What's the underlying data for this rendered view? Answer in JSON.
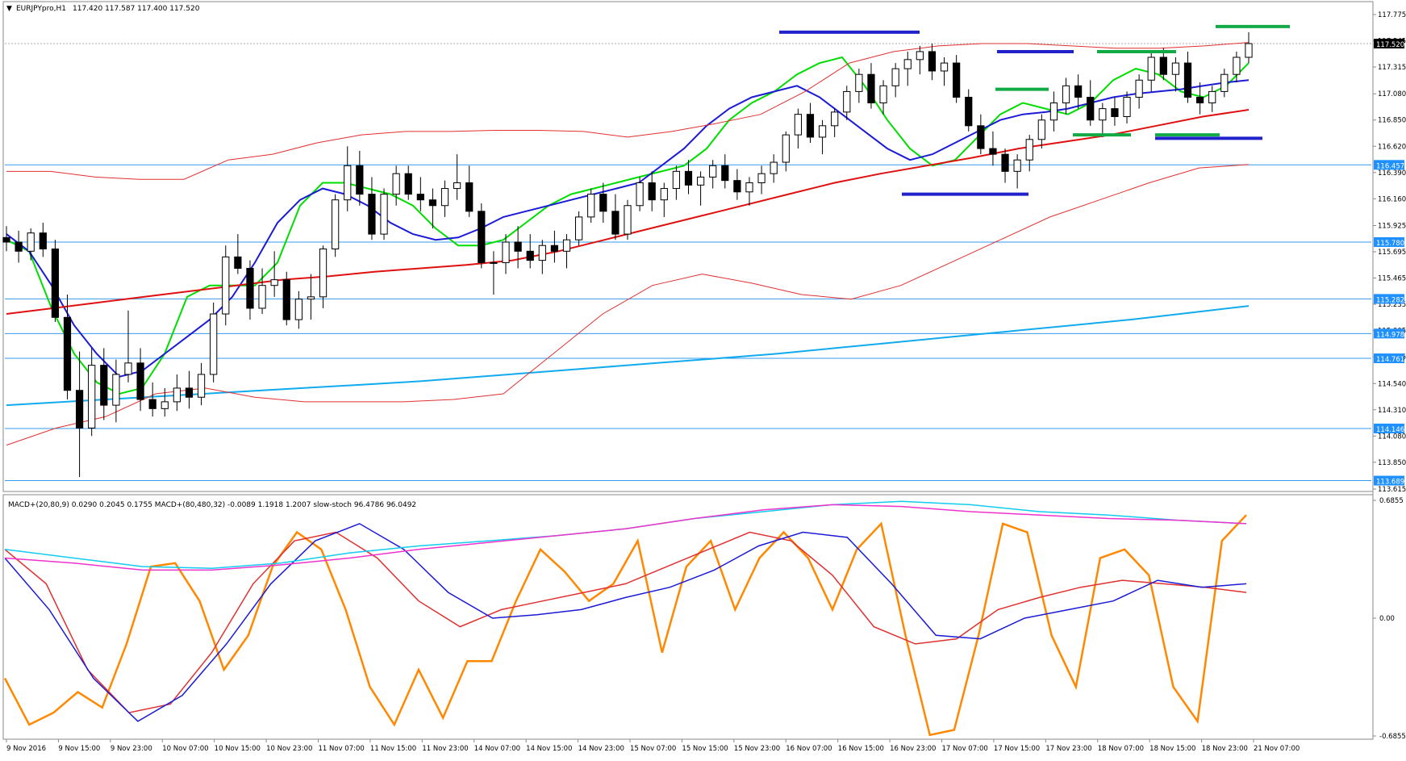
{
  "chart_data": [
    {
      "type": "candlestick",
      "symbol_label": "EURJPYpro,H1",
      "ohlc_label": "117.420 117.587 117.400 117.520",
      "y_ticks": [
        "117.775",
        "117.545",
        "117.315",
        "117.080",
        "116.850",
        "116.620",
        "116.390",
        "116.160",
        "115.925",
        "115.695",
        "115.465",
        "115.235",
        "115.005",
        "114.775",
        "114.540",
        "114.310",
        "114.080",
        "113.850",
        "113.615"
      ],
      "ylim": [
        113.615,
        117.775
      ],
      "current_price": "117.520",
      "horizontal_levels": [
        "116.457",
        "115.780",
        "115.282",
        "114.978",
        "114.761",
        "114.146",
        "113.689"
      ],
      "candles": [
        [
          115.82,
          115.92,
          115.7,
          115.78
        ],
        [
          115.78,
          115.88,
          115.6,
          115.7
        ],
        [
          115.7,
          115.9,
          115.62,
          115.86
        ],
        [
          115.86,
          115.95,
          115.65,
          115.72
        ],
        [
          115.72,
          115.8,
          115.08,
          115.12
        ],
        [
          115.12,
          115.32,
          114.4,
          114.48
        ],
        [
          114.48,
          114.82,
          113.72,
          114.15
        ],
        [
          114.15,
          114.85,
          114.08,
          114.7
        ],
        [
          114.7,
          114.85,
          114.22,
          114.35
        ],
        [
          114.35,
          114.75,
          114.2,
          114.62
        ],
        [
          114.62,
          115.18,
          114.55,
          114.72
        ],
        [
          114.72,
          114.85,
          114.3,
          114.4
        ],
        [
          114.4,
          114.55,
          114.25,
          114.32
        ],
        [
          114.32,
          114.5,
          114.25,
          114.38
        ],
        [
          114.38,
          114.62,
          114.3,
          114.5
        ],
        [
          114.5,
          114.65,
          114.32,
          114.42
        ],
        [
          114.42,
          114.72,
          114.35,
          114.62
        ],
        [
          114.62,
          115.25,
          114.55,
          115.15
        ],
        [
          115.15,
          115.75,
          115.05,
          115.65
        ],
        [
          115.65,
          115.85,
          115.5,
          115.55
        ],
        [
          115.55,
          115.62,
          115.1,
          115.2
        ],
        [
          115.2,
          115.55,
          115.15,
          115.4
        ],
        [
          115.4,
          115.7,
          115.3,
          115.45
        ],
        [
          115.45,
          115.52,
          115.05,
          115.1
        ],
        [
          115.1,
          115.35,
          115.02,
          115.28
        ],
        [
          115.28,
          115.5,
          115.1,
          115.3
        ],
        [
          115.3,
          115.75,
          115.2,
          115.72
        ],
        [
          115.72,
          116.2,
          115.65,
          116.15
        ],
        [
          116.15,
          116.62,
          116.05,
          116.45
        ],
        [
          116.45,
          116.58,
          116.1,
          116.2
        ],
        [
          116.2,
          116.35,
          115.8,
          115.85
        ],
        [
          115.85,
          116.25,
          115.8,
          116.2
        ],
        [
          116.2,
          116.45,
          116.1,
          116.38
        ],
        [
          116.38,
          116.45,
          116.15,
          116.2
        ],
        [
          116.2,
          116.35,
          116.05,
          116.15
        ],
        [
          116.15,
          116.25,
          115.9,
          116.1
        ],
        [
          116.1,
          116.32,
          116.0,
          116.25
        ],
        [
          116.25,
          116.55,
          116.15,
          116.3
        ],
        [
          116.3,
          116.45,
          116.0,
          116.05
        ],
        [
          116.05,
          116.12,
          115.55,
          115.6
        ],
        [
          115.6,
          115.7,
          115.32,
          115.6
        ],
        [
          115.6,
          115.85,
          115.5,
          115.78
        ],
        [
          115.78,
          115.92,
          115.55,
          115.7
        ],
        [
          115.7,
          115.85,
          115.55,
          115.62
        ],
        [
          115.62,
          115.8,
          115.5,
          115.75
        ],
        [
          115.75,
          115.88,
          115.6,
          115.7
        ],
        [
          115.7,
          115.85,
          115.55,
          115.8
        ],
        [
          115.8,
          116.05,
          115.75,
          116.0
        ],
        [
          116.0,
          116.25,
          115.95,
          116.2
        ],
        [
          116.2,
          116.3,
          115.95,
          116.05
        ],
        [
          116.05,
          116.2,
          115.8,
          115.85
        ],
        [
          115.85,
          116.15,
          115.8,
          116.1
        ],
        [
          116.1,
          116.35,
          116.05,
          116.3
        ],
        [
          116.3,
          116.4,
          116.05,
          116.15
        ],
        [
          116.15,
          116.3,
          116.0,
          116.25
        ],
        [
          116.25,
          116.45,
          116.15,
          116.4
        ],
        [
          116.4,
          116.5,
          116.2,
          116.28
        ],
        [
          116.28,
          116.4,
          116.1,
          116.35
        ],
        [
          116.35,
          116.5,
          116.25,
          116.45
        ],
        [
          116.45,
          116.55,
          116.25,
          116.32
        ],
        [
          116.32,
          116.42,
          116.15,
          116.22
        ],
        [
          116.22,
          116.35,
          116.1,
          116.3
        ],
        [
          116.3,
          116.45,
          116.2,
          116.38
        ],
        [
          116.38,
          116.55,
          116.3,
          116.48
        ],
        [
          116.48,
          116.75,
          116.4,
          116.72
        ],
        [
          116.72,
          116.95,
          116.6,
          116.9
        ],
        [
          116.9,
          117.0,
          116.65,
          116.7
        ],
        [
          116.7,
          116.85,
          116.55,
          116.8
        ],
        [
          116.8,
          116.95,
          116.7,
          116.92
        ],
        [
          116.92,
          117.15,
          116.85,
          117.1
        ],
        [
          117.1,
          117.3,
          117.0,
          117.25
        ],
        [
          117.25,
          117.35,
          116.95,
          117.0
        ],
        [
          117.0,
          117.2,
          116.9,
          117.15
        ],
        [
          117.15,
          117.35,
          117.05,
          117.3
        ],
        [
          117.3,
          117.45,
          117.15,
          117.38
        ],
        [
          117.38,
          117.5,
          117.25,
          117.45
        ],
        [
          117.45,
          117.52,
          117.2,
          117.28
        ],
        [
          117.28,
          117.4,
          117.15,
          117.35
        ],
        [
          117.35,
          117.42,
          117.0,
          117.05
        ],
        [
          117.05,
          117.12,
          116.75,
          116.8
        ],
        [
          116.8,
          116.9,
          116.55,
          116.6
        ],
        [
          116.6,
          116.75,
          116.45,
          116.55
        ],
        [
          116.55,
          116.6,
          116.3,
          116.4
        ],
        [
          116.4,
          116.55,
          116.25,
          116.5
        ],
        [
          116.5,
          116.72,
          116.4,
          116.68
        ],
        [
          116.68,
          116.9,
          116.6,
          116.85
        ],
        [
          116.85,
          117.1,
          116.75,
          117.0
        ],
        [
          117.0,
          117.22,
          116.9,
          117.15
        ],
        [
          117.15,
          117.25,
          116.95,
          117.05
        ],
        [
          117.05,
          117.2,
          116.8,
          116.85
        ],
        [
          116.85,
          117.0,
          116.7,
          116.95
        ],
        [
          116.95,
          117.05,
          116.8,
          116.88
        ],
        [
          116.88,
          117.1,
          116.82,
          117.05
        ],
        [
          117.05,
          117.25,
          116.95,
          117.2
        ],
        [
          117.2,
          117.45,
          117.1,
          117.4
        ],
        [
          117.4,
          117.48,
          117.2,
          117.25
        ],
        [
          117.25,
          117.4,
          117.1,
          117.35
        ],
        [
          117.35,
          117.45,
          117.0,
          117.05
        ],
        [
          117.05,
          117.18,
          116.9,
          117.0
        ],
        [
          117.0,
          117.15,
          116.92,
          117.1
        ],
        [
          117.1,
          117.3,
          117.05,
          117.25
        ],
        [
          117.25,
          117.45,
          117.18,
          117.4
        ],
        [
          117.4,
          117.62,
          117.35,
          117.52
        ]
      ],
      "overlay_lines": [
        {
          "name": "ema-fast-green",
          "color": "#00dd00",
          "values": [
            115.8,
            115.7,
            115.2,
            114.8,
            114.55,
            114.45,
            114.5,
            114.8,
            115.3,
            115.4,
            115.4,
            115.4,
            115.6,
            116.1,
            116.3,
            116.3,
            116.25,
            116.2,
            116.1,
            115.9,
            115.75,
            115.75,
            115.8,
            115.95,
            116.1,
            116.2,
            116.25,
            116.3,
            116.35,
            116.4,
            116.45,
            116.6,
            116.85,
            117.0,
            117.1,
            117.25,
            117.35,
            117.4,
            117.15,
            116.85,
            116.6,
            116.45,
            116.5,
            116.7,
            116.9,
            117.0,
            116.95,
            116.9,
            117.0,
            117.2,
            117.3,
            117.25,
            117.1,
            117.05,
            117.15,
            117.35
          ]
        },
        {
          "name": "ema-mid-blue",
          "color": "#1b1bd6",
          "values": [
            115.85,
            115.7,
            115.4,
            115.05,
            114.8,
            114.6,
            114.65,
            114.8,
            114.95,
            115.1,
            115.3,
            115.6,
            115.95,
            116.15,
            116.25,
            116.2,
            116.1,
            115.95,
            115.85,
            115.8,
            115.82,
            115.9,
            116.0,
            116.05,
            116.1,
            116.15,
            116.2,
            116.25,
            116.3,
            116.45,
            116.6,
            116.8,
            116.95,
            117.05,
            117.1,
            117.15,
            117.05,
            116.9,
            116.75,
            116.6,
            116.5,
            116.55,
            116.65,
            116.75,
            116.85,
            116.9,
            116.92,
            116.95,
            117.0,
            117.05,
            117.08,
            117.1,
            117.12,
            117.15,
            117.18,
            117.2
          ]
        },
        {
          "name": "ema-slow-red",
          "color": "#e01010",
          "values": [
            115.15,
            115.2,
            115.25,
            115.3,
            115.35,
            115.4,
            115.45,
            115.48,
            115.52,
            115.55,
            115.58,
            115.62,
            115.7,
            115.8,
            115.9,
            116.0,
            116.1,
            116.2,
            116.3,
            116.38,
            116.45,
            116.52,
            116.6,
            116.66,
            116.72,
            116.8,
            116.88,
            116.94
          ]
        },
        {
          "name": "ema-longterm-cyan",
          "color": "#11aaee",
          "values": [
            114.35,
            114.38,
            114.41,
            114.44,
            114.47,
            114.5,
            114.53,
            114.56,
            114.6,
            114.64,
            114.68,
            114.72,
            114.76,
            114.8,
            114.85,
            114.9,
            114.95,
            115.0,
            115.05,
            115.1,
            115.16,
            115.22
          ]
        },
        {
          "name": "envelope-upper",
          "color": "#e03030",
          "values": [
            116.4,
            116.4,
            116.35,
            116.33,
            116.33,
            116.5,
            116.55,
            116.65,
            116.72,
            116.75,
            116.75,
            116.76,
            116.76,
            116.75,
            116.7,
            116.75,
            116.82,
            116.9,
            117.1,
            117.35,
            117.45,
            117.5,
            117.52,
            117.52,
            117.5,
            117.48,
            117.48,
            117.5,
            117.53
          ]
        },
        {
          "name": "envelope-lower",
          "color": "#e03030",
          "values": [
            114.0,
            114.15,
            114.25,
            114.45,
            114.5,
            114.42,
            114.38,
            114.38,
            114.38,
            114.4,
            114.45,
            114.8,
            115.15,
            115.4,
            115.5,
            115.42,
            115.32,
            115.28,
            115.4,
            115.6,
            115.8,
            116.0,
            116.15,
            116.3,
            116.43,
            116.46
          ]
        }
      ],
      "resistance_support_marks": []
    },
    {
      "type": "line",
      "title": "MACD+(20,80,9) 0.0290 0.2045 0.1755  MACD+(80,480,32) -0.0089 1.1918 1.2007  slow-stoch 96.4786 96.0492",
      "y_ticks": [
        "0.6855",
        "0.00",
        "-0.6855"
      ],
      "ylim": [
        -0.6855,
        0.6855
      ],
      "x_ticks": [
        "9 Nov 2016",
        "9 Nov 15:00",
        "9 Nov 23:00",
        "10 Nov 07:00",
        "10 Nov 15:00",
        "10 Nov 23:00",
        "11 Nov 07:00",
        "11 Nov 15:00",
        "11 Nov 23:00",
        "14 Nov 07:00",
        "14 Nov 15:00",
        "14 Nov 23:00",
        "15 Nov 07:00",
        "15 Nov 15:00",
        "15 Nov 23:00",
        "16 Nov 07:00",
        "16 Nov 15:00",
        "16 Nov 23:00",
        "17 Nov 07:00",
        "17 Nov 15:00",
        "17 Nov 23:00",
        "18 Nov 07:00",
        "18 Nov 15:00",
        "18 Nov 23:00",
        "21 Nov 07:00"
      ],
      "series": [
        {
          "color": "#ff8800",
          "values": [
            -0.35,
            -0.62,
            -0.55,
            -0.43,
            -0.52,
            -0.15,
            0.3,
            0.32,
            0.1,
            -0.3,
            -0.1,
            0.3,
            0.5,
            0.4,
            0.05,
            -0.4,
            -0.62,
            -0.3,
            -0.58,
            -0.25,
            -0.25,
            0.1,
            0.4,
            0.27,
            0.1,
            0.2,
            0.45,
            -0.2,
            0.3,
            0.45,
            0.05,
            0.35,
            0.5,
            0.35,
            0.05,
            0.4,
            0.55,
            -0.1,
            -0.68,
            -0.65,
            -0.1,
            0.55,
            0.5,
            -0.1,
            -0.4,
            0.35,
            0.4,
            0.25,
            -0.4,
            -0.6,
            0.45,
            0.6
          ]
        },
        {
          "color": "#e03030",
          "values": [
            0.4,
            0.2,
            -0.3,
            -0.55,
            -0.5,
            -0.2,
            0.2,
            0.45,
            0.5,
            0.35,
            0.1,
            -0.05,
            0.05,
            0.1,
            0.15,
            0.2,
            0.3,
            0.4,
            0.5,
            0.45,
            0.25,
            -0.05,
            -0.15,
            -0.12,
            0.05,
            0.12,
            0.18,
            0.22,
            0.2,
            0.18,
            0.15
          ]
        },
        {
          "color": "#1b1bd6",
          "values": [
            0.35,
            0.05,
            -0.35,
            -0.6,
            -0.45,
            -0.15,
            0.2,
            0.45,
            0.55,
            0.4,
            0.15,
            0.0,
            0.02,
            0.05,
            0.12,
            0.18,
            0.28,
            0.42,
            0.5,
            0.47,
            0.2,
            -0.1,
            -0.12,
            0.0,
            0.05,
            0.1,
            0.22,
            0.18,
            0.2
          ]
        },
        {
          "color": "#11ccee",
          "values": [
            0.4,
            0.35,
            0.3,
            0.29,
            0.32,
            0.38,
            0.42,
            0.45,
            0.48,
            0.52,
            0.58,
            0.62,
            0.66,
            0.68,
            0.66,
            0.62,
            0.6,
            0.57,
            0.55
          ]
        },
        {
          "color": "#ee33cc",
          "values": [
            0.35,
            0.32,
            0.28,
            0.28,
            0.31,
            0.35,
            0.4,
            0.44,
            0.48,
            0.52,
            0.58,
            0.63,
            0.66,
            0.65,
            0.62,
            0.6,
            0.58,
            0.57,
            0.55
          ]
        }
      ]
    }
  ]
}
